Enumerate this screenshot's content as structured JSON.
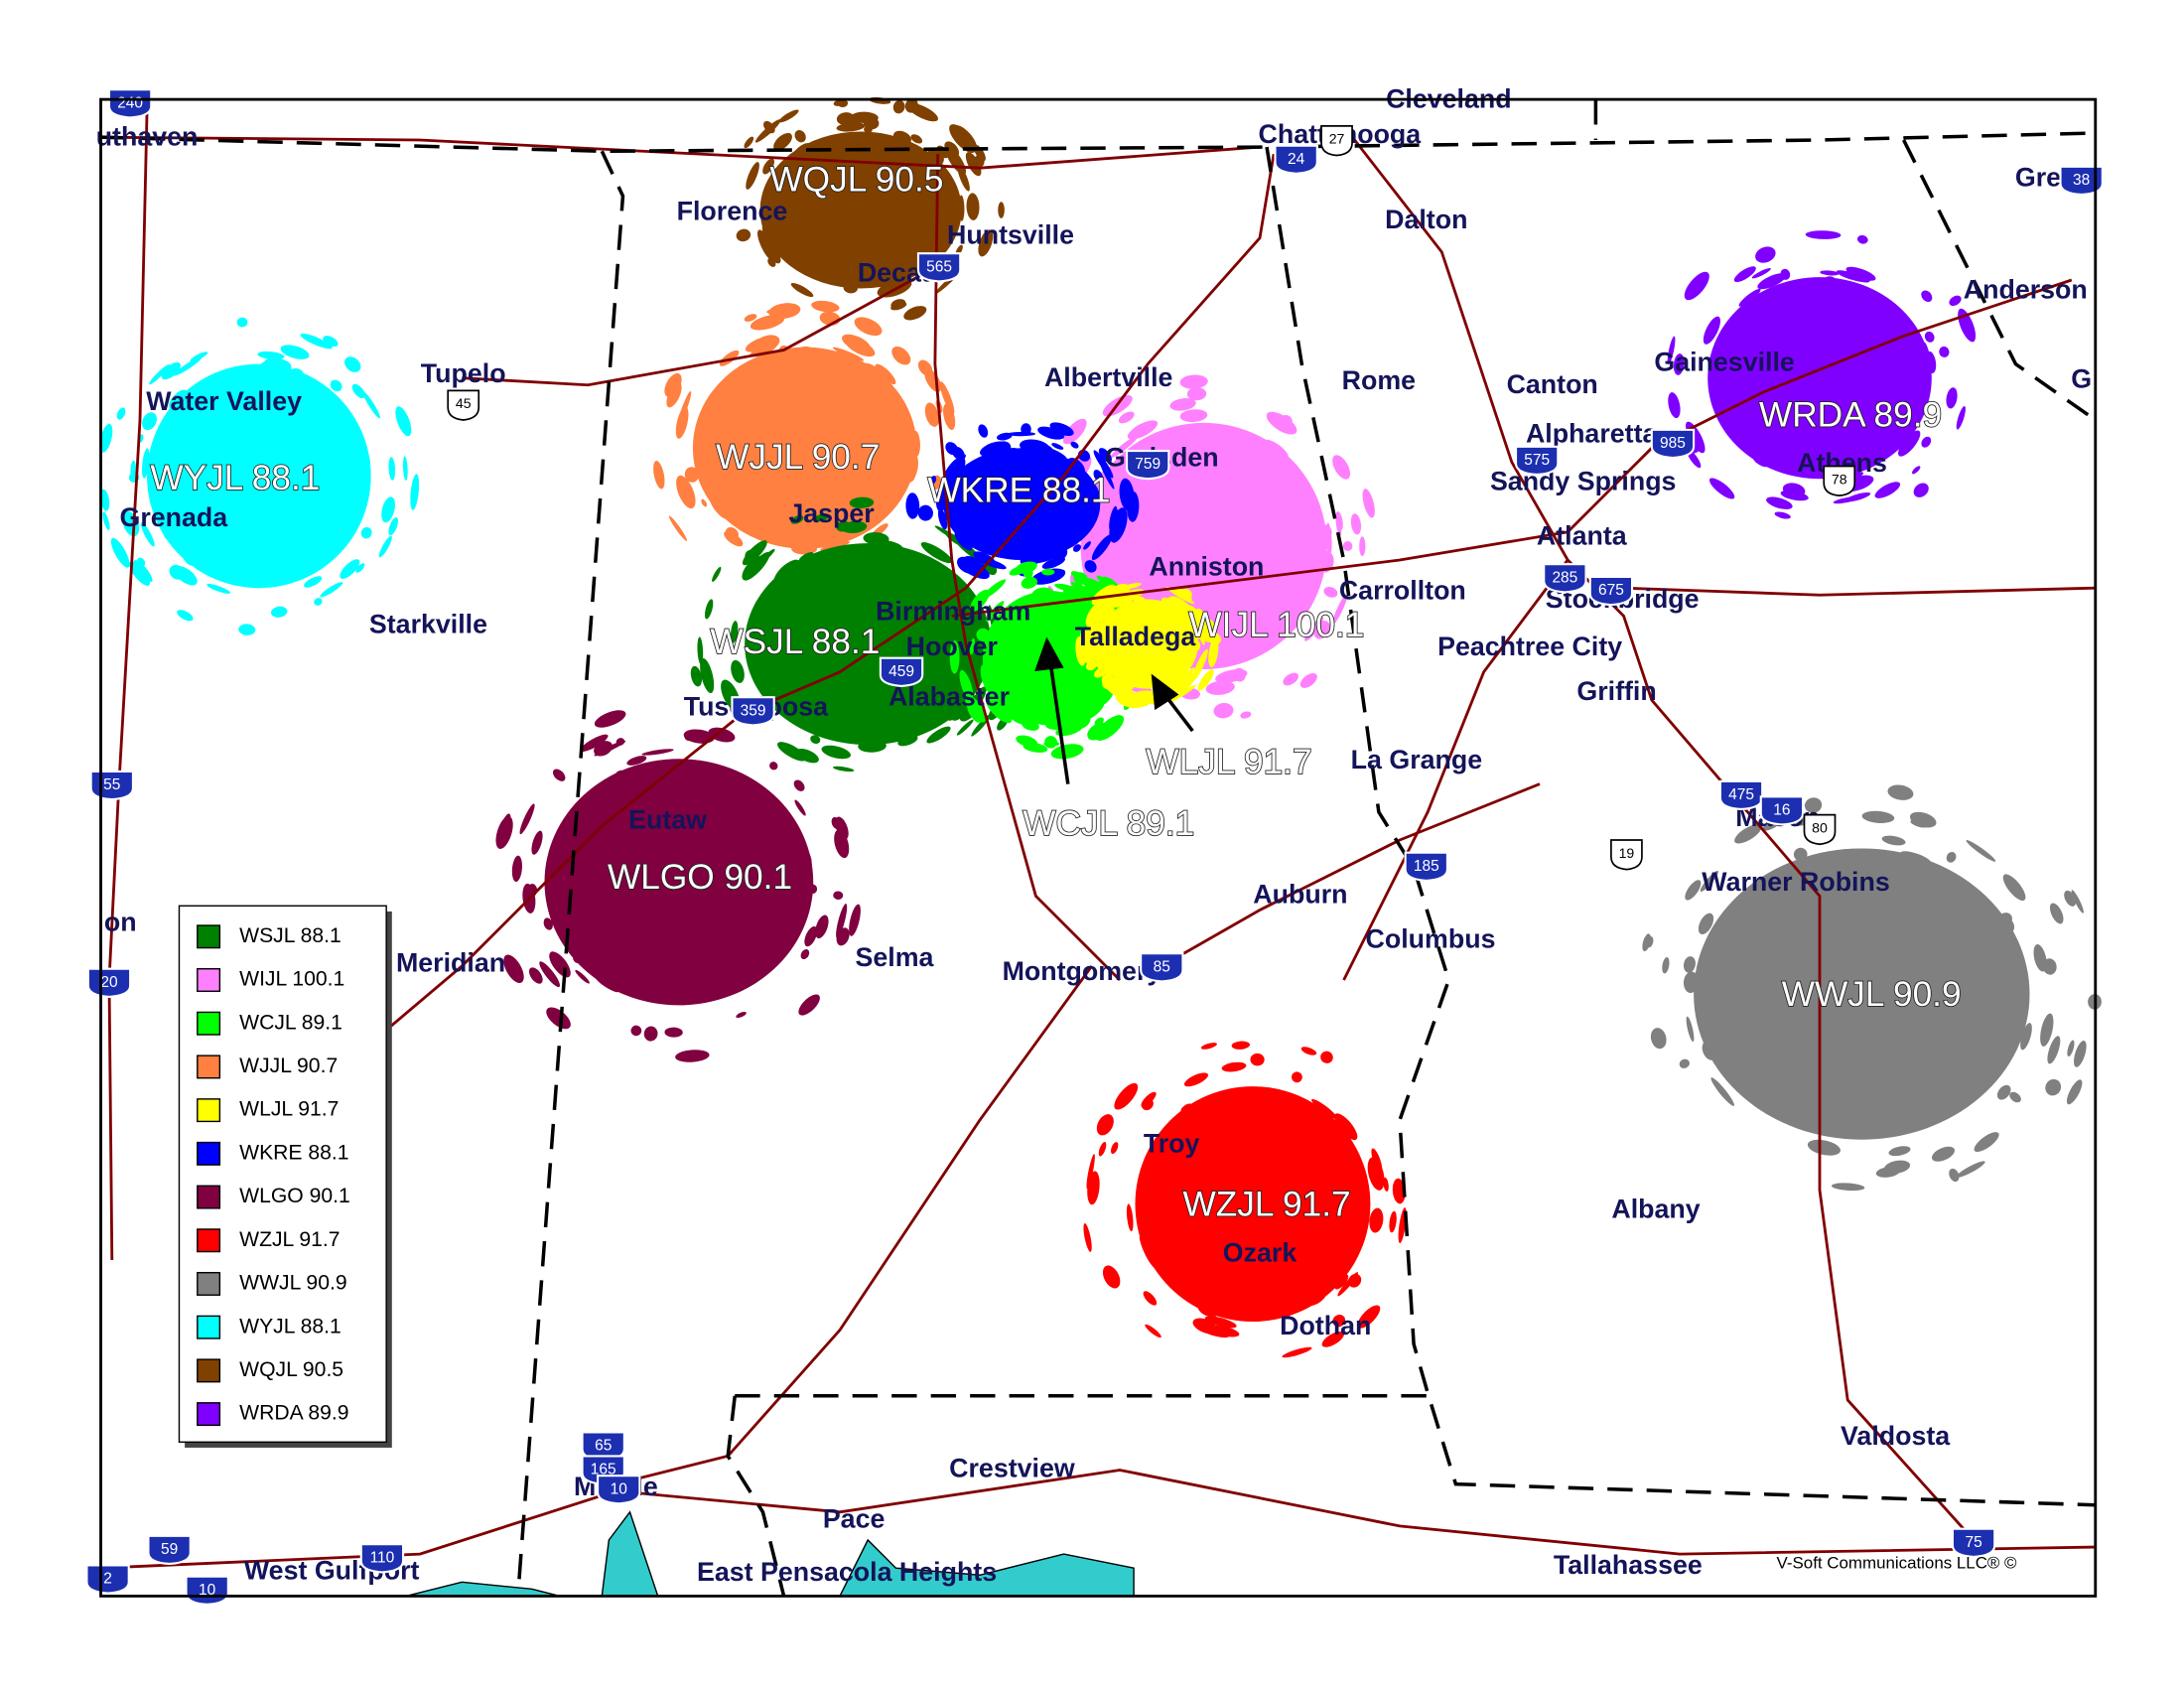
{
  "legend": {
    "items": [
      {
        "name": "WSJL 88.1",
        "color": "#008000"
      },
      {
        "name": "WIJL 100.1",
        "color": "#ff80ff"
      },
      {
        "name": "WCJL 89.1",
        "color": "#00ff00"
      },
      {
        "name": "WJJL 90.7",
        "color": "#ff8040"
      },
      {
        "name": "WLJL 91.7",
        "color": "#ffff00"
      },
      {
        "name": "WKRE 88.1",
        "color": "#0000ff"
      },
      {
        "name": "WLGO 90.1",
        "color": "#800040"
      },
      {
        "name": "WZJL 91.7",
        "color": "#ff0000"
      },
      {
        "name": "WWJL 90.9",
        "color": "#808080"
      },
      {
        "name": "WYJL 88.1",
        "color": "#00ffff"
      },
      {
        "name": "WQJL 90.5",
        "color": "#804000"
      },
      {
        "name": "WRDA 89.9",
        "color": "#8000ff"
      }
    ]
  },
  "cities": [
    "uthaven",
    "Florence",
    "Huntsville",
    "Decatur",
    "Tupelo",
    "Water Valley",
    "Grenada",
    "Starkville",
    "Albertville",
    "Gadsden",
    "Jasper",
    "Anniston",
    "Birmingham",
    "Hoover",
    "Talladega",
    "Alabaster",
    "Tuscaloosa",
    "Eutaw",
    "Meridian",
    "Selma",
    "Montgomery",
    "Auburn",
    "Columbus",
    "La Grange",
    "Carrollton",
    "Rome",
    "Dalton",
    "Chattanooga",
    "Cleveland",
    "Canton",
    "Alpharetta",
    "Sandy Springs",
    "Atlanta",
    "Stockbridge",
    "Peachtree City",
    "Griffin",
    "Gainesville",
    "Athens",
    "Anderson",
    "Gre",
    "G",
    "Macon",
    "Warner Robins",
    "Albany",
    "Valdosta",
    "Tallahassee",
    "Troy",
    "Ozark",
    "Dothan",
    "Crestview",
    "Pace",
    "East Pensacola Heights",
    "Mobile",
    "West Gulfport",
    "on"
  ],
  "interstates": [
    "565",
    "24",
    "759",
    "575",
    "985",
    "285",
    "675",
    "459",
    "359",
    "185",
    "475",
    "16",
    "85",
    "65",
    "165",
    "10",
    "110",
    "59",
    "75",
    "20",
    "55",
    "240",
    "38",
    "2",
    "10"
  ],
  "routes": [
    "27",
    "45",
    "78",
    "80",
    "19"
  ],
  "credit": "V-Soft Communications LLC® ©"
}
